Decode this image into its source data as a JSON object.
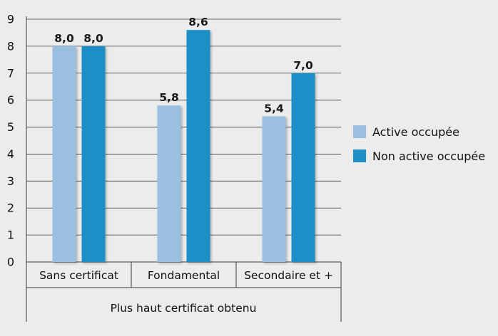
{
  "chart_data": {
    "type": "bar",
    "title": "",
    "xlabel": "Plus haut certificat obtenu",
    "ylabel": "",
    "ylim": [
      0,
      9
    ],
    "yticks": [
      "0",
      "1",
      "2",
      "3",
      "4",
      "5",
      "6",
      "7",
      "8",
      "9"
    ],
    "grid": true,
    "legend_position": "right",
    "categories": [
      "Sans certificat",
      "Fondamental",
      "Secondaire et +"
    ],
    "series": [
      {
        "name": "Active occupée",
        "values": [
          8.0,
          5.8,
          5.4
        ],
        "labels": [
          "8,0",
          "5,8",
          "5,4"
        ],
        "color": "#9bbfe0"
      },
      {
        "name": "Non active occupée",
        "values": [
          8.0,
          8.6,
          7.0
        ],
        "labels": [
          "8,0",
          "8,6",
          "7,0"
        ],
        "color": "#1f8fc6"
      }
    ]
  }
}
